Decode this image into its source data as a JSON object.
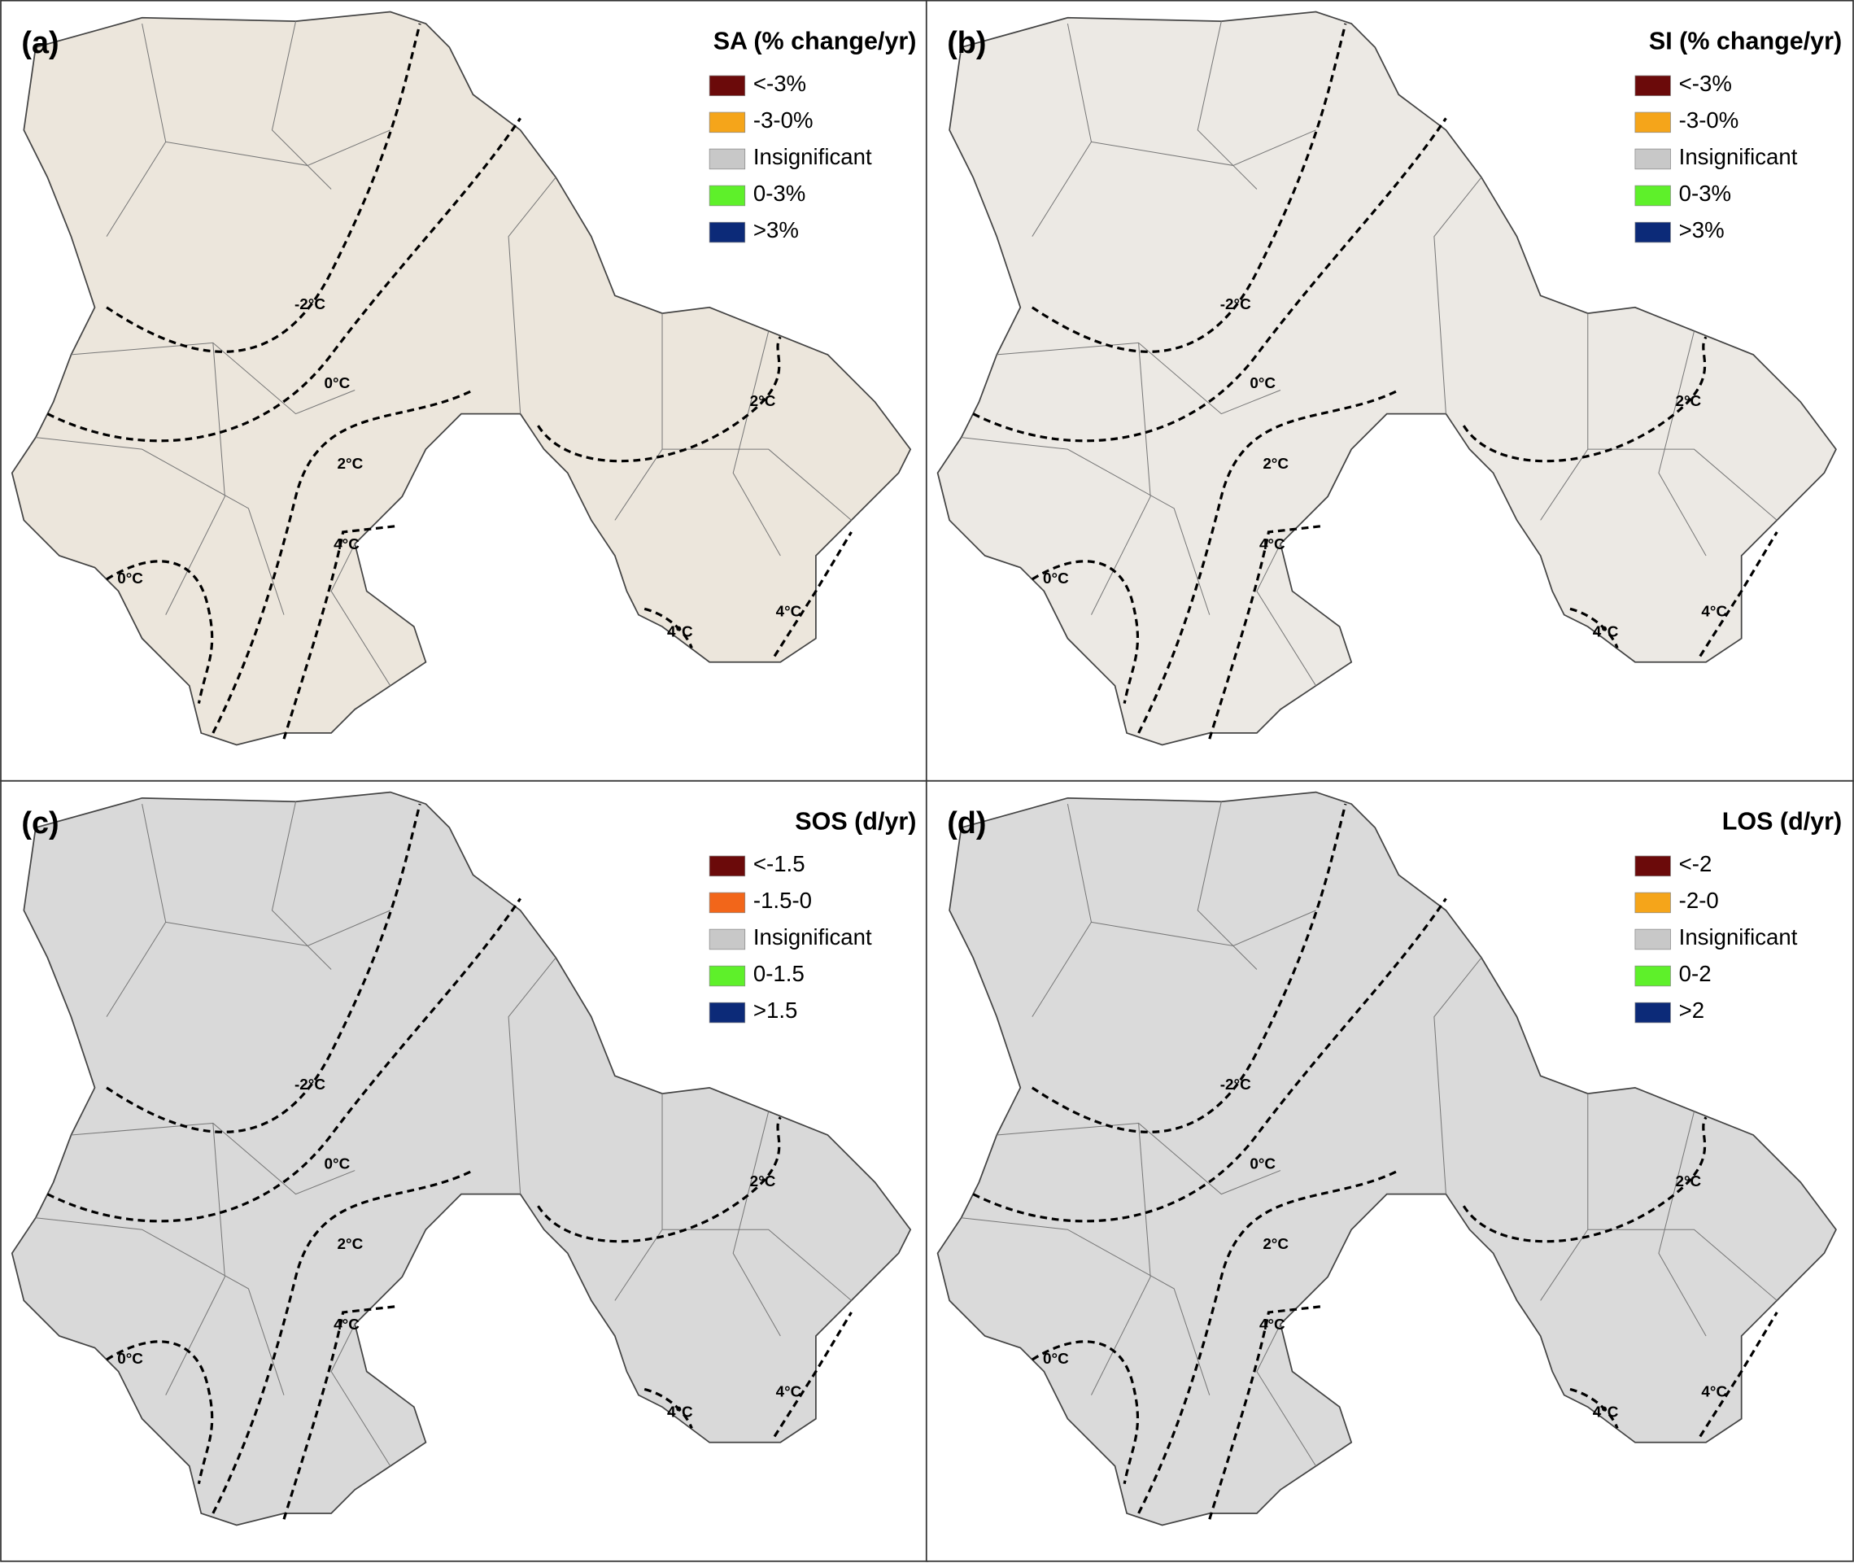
{
  "panels": [
    {
      "label": "(a)",
      "legend": {
        "title": "SA (% change/yr)",
        "items": [
          {
            "label": "<-3%",
            "color": "#6b0a0a"
          },
          {
            "label": "-3-0%",
            "color": "#f5a51a"
          },
          {
            "label": "Insignificant",
            "color": "#c8c8c8"
          },
          {
            "label": "0-3%",
            "color": "#5ef02a"
          },
          {
            "label": ">3%",
            "color": "#0c2a78"
          }
        ]
      },
      "isotherms": [
        "-2°C",
        "0°C",
        "2°C",
        "4°C",
        "0°C",
        "2°C",
        "4°C",
        "4°C"
      ]
    },
    {
      "label": "(b)",
      "legend": {
        "title": "SI (% change/yr)",
        "items": [
          {
            "label": "<-3%",
            "color": "#6b0a0a"
          },
          {
            "label": "-3-0%",
            "color": "#f5a51a"
          },
          {
            "label": "Insignificant",
            "color": "#c8c8c8"
          },
          {
            "label": "0-3%",
            "color": "#5ef02a"
          },
          {
            "label": ">3%",
            "color": "#0c2a78"
          }
        ]
      },
      "isotherms": [
        "-2°C",
        "0°C",
        "2°C",
        "4°C",
        "0°C",
        "2°C",
        "4°C",
        "4°C"
      ]
    },
    {
      "label": "(c)",
      "legend": {
        "title": "SOS (d/yr)",
        "items": [
          {
            "label": "<-1.5",
            "color": "#6b0a0a"
          },
          {
            "label": "-1.5-0",
            "color": "#f2661a"
          },
          {
            "label": "Insignificant",
            "color": "#c8c8c8"
          },
          {
            "label": "0-1.5",
            "color": "#5ef02a"
          },
          {
            "label": ">1.5",
            "color": "#0c2a78"
          }
        ]
      },
      "isotherms": [
        "-2°C",
        "0°C",
        "2°C",
        "4°C",
        "0°C",
        "2°C",
        "4°C",
        "4°C"
      ]
    },
    {
      "label": "(d)",
      "legend": {
        "title": "LOS (d/yr)",
        "items": [
          {
            "label": "<-2",
            "color": "#6b0a0a"
          },
          {
            "label": "-2-0",
            "color": "#f5a51a"
          },
          {
            "label": "Insignificant",
            "color": "#c8c8c8"
          },
          {
            "label": "0-2",
            "color": "#5ef02a"
          },
          {
            "label": ">2",
            "color": "#0c2a78"
          }
        ]
      },
      "isotherms": [
        "-2°C",
        "0°C",
        "2°C",
        "4°C",
        "0°C",
        "2°C",
        "4°C",
        "4°C"
      ]
    }
  ]
}
